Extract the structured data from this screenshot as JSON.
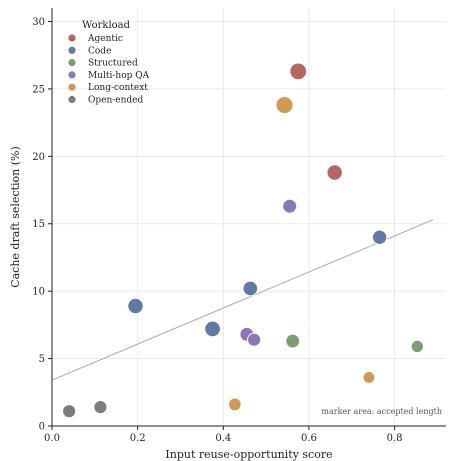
{
  "chart_data": {
    "type": "scatter",
    "xlabel": "Input reuse-opportunity score",
    "ylabel": "Cache draft selection (%)",
    "xlim": [
      0.0,
      0.92
    ],
    "ylim": [
      0,
      31
    ],
    "xticks": [
      0.0,
      0.2,
      0.4,
      0.6,
      0.8
    ],
    "xtick_labels": [
      "0.0",
      "0.2",
      "0.4",
      "0.6",
      "0.8"
    ],
    "yticks": [
      0,
      5,
      10,
      15,
      20,
      25,
      30
    ],
    "ytick_labels": [
      "0",
      "5",
      "10",
      "15",
      "20",
      "25",
      "30"
    ],
    "grid": true,
    "legend_title": "Workload",
    "legend_position": "top-left",
    "annotation": "marker area: accepted length",
    "trendline": {
      "x": [
        0.0,
        0.89
      ],
      "y": [
        3.4,
        15.3
      ]
    },
    "series": [
      {
        "name": "Agentic",
        "color": "#b5675f",
        "points": [
          {
            "x": 0.575,
            "y": 26.3,
            "size": 2.6
          },
          {
            "x": 0.66,
            "y": 18.8,
            "size": 2.2
          }
        ]
      },
      {
        "name": "Code",
        "color": "#5f7aa3",
        "points": [
          {
            "x": 0.195,
            "y": 8.9,
            "size": 2.2
          },
          {
            "x": 0.375,
            "y": 7.2,
            "size": 2.3
          },
          {
            "x": 0.463,
            "y": 10.2,
            "size": 2.0
          },
          {
            "x": 0.765,
            "y": 14.0,
            "size": 1.9
          }
        ]
      },
      {
        "name": "Structured",
        "color": "#78a070",
        "points": [
          {
            "x": 0.562,
            "y": 6.3,
            "size": 1.8
          },
          {
            "x": 0.853,
            "y": 5.9,
            "size": 1.4
          }
        ]
      },
      {
        "name": "Multi-hop QA",
        "color": "#8c78b8",
        "points": [
          {
            "x": 0.455,
            "y": 6.8,
            "size": 1.8
          },
          {
            "x": 0.472,
            "y": 6.4,
            "size": 1.6
          },
          {
            "x": 0.555,
            "y": 16.3,
            "size": 1.8
          }
        ]
      },
      {
        "name": "Long-context",
        "color": "#d19a4f",
        "points": [
          {
            "x": 0.543,
            "y": 23.8,
            "size": 2.7
          },
          {
            "x": 0.427,
            "y": 1.6,
            "size": 1.5
          },
          {
            "x": 0.74,
            "y": 3.6,
            "size": 1.3
          }
        ]
      },
      {
        "name": "Open-ended",
        "color": "#7c7c7c",
        "points": [
          {
            "x": 0.04,
            "y": 1.1,
            "size": 1.6
          },
          {
            "x": 0.113,
            "y": 1.4,
            "size": 1.6
          }
        ]
      }
    ]
  }
}
